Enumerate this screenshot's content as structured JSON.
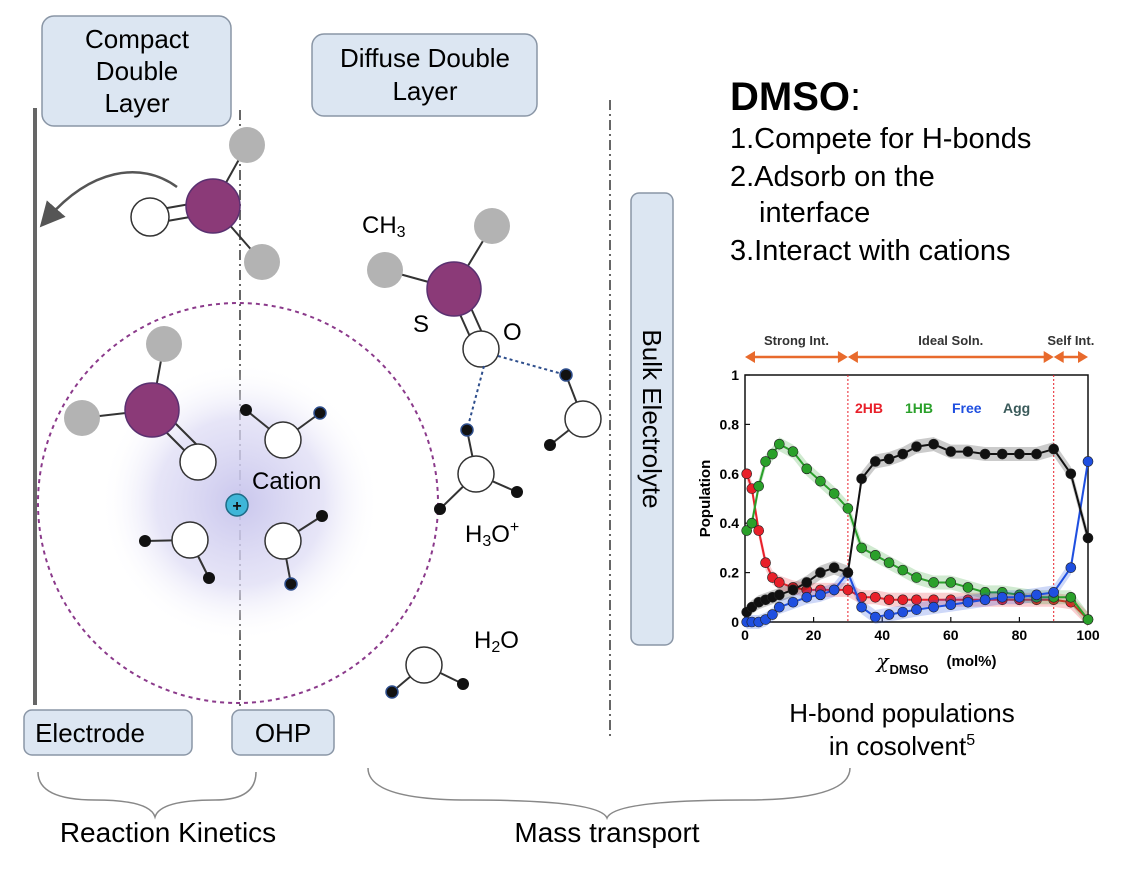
{
  "boxes": {
    "compact_line1": "Compact",
    "compact_line2": "Double",
    "compact_line3": "Layer",
    "diffuse_line1": "Diffuse Double",
    "diffuse_line2": "Layer",
    "bulk": "Bulk Electrolyte",
    "electrode": "Electrode",
    "ohp": "OHP"
  },
  "molecule_labels": {
    "ch3": "CH",
    "ch3_sub": "3",
    "s": "S",
    "o": "O",
    "cation": "Cation",
    "plus": "+",
    "h3o": "H",
    "h3o_sub": "3",
    "h3o_rest": "O",
    "h3o_sup": "+",
    "h2o": "H",
    "h2o_sub": "2",
    "h2o_rest": "O"
  },
  "bottom": {
    "reaction": "Reaction Kinetics",
    "mass": "Mass transport"
  },
  "dmso_panel": {
    "title": "DMSO",
    "colon": ":",
    "item1": "1.Compete for H-bonds",
    "item2a": "2.Adsorb on the",
    "item2b": "interface",
    "item3": "3.Interact with cations"
  },
  "caption": {
    "line1": "H-bond populations",
    "line2": "in cosolvent",
    "sup": "5"
  },
  "colors": {
    "box_fill": "#dce6f2",
    "box_stroke": "#8a96a6",
    "molecule_s": "#8b3a78",
    "cation": "#3fb6d8",
    "dashed_circle": "#8b3a8b",
    "hbond": "#2e4e8c",
    "arrow": "#e86a2c"
  },
  "chart_data": {
    "type": "line",
    "xlabel": "χ",
    "xlabel_sub": "DMSO",
    "xlabel_unit": "(mol%)",
    "ylabel": "Population",
    "xlim": [
      0,
      100
    ],
    "ylim": [
      0,
      1
    ],
    "xticks": [
      "0",
      "20",
      "40",
      "60",
      "80",
      "100"
    ],
    "yticks": [
      "0",
      "0.2",
      "0.4",
      "0.6",
      "0.8",
      "1"
    ],
    "regions": [
      "Strong Int.",
      "Ideal Soln.",
      "Self Int."
    ],
    "dividers": [
      30,
      90
    ],
    "x": [
      0.5,
      2,
      4,
      6,
      8,
      10,
      14,
      18,
      22,
      26,
      30,
      34,
      38,
      42,
      46,
      50,
      55,
      60,
      65,
      70,
      75,
      80,
      85,
      90,
      95,
      100
    ],
    "series": [
      {
        "name": "2HB",
        "color": "#e8202a",
        "values": [
          0.6,
          0.54,
          0.37,
          0.24,
          0.18,
          0.16,
          0.14,
          0.13,
          0.13,
          0.13,
          0.13,
          0.1,
          0.1,
          0.09,
          0.09,
          0.09,
          0.09,
          0.09,
          0.09,
          0.09,
          0.09,
          0.09,
          0.09,
          0.09,
          0.08,
          0.01
        ]
      },
      {
        "name": "1HB",
        "color": "#2aa02a",
        "values": [
          0.37,
          0.4,
          0.55,
          0.65,
          0.68,
          0.72,
          0.69,
          0.62,
          0.57,
          0.52,
          0.46,
          0.3,
          0.27,
          0.24,
          0.21,
          0.18,
          0.16,
          0.16,
          0.14,
          0.12,
          0.12,
          0.11,
          0.1,
          0.1,
          0.1,
          0.01
        ]
      },
      {
        "name": "Free",
        "color": "#1f4fe0",
        "values": [
          0.0,
          0.0,
          0.0,
          0.01,
          0.03,
          0.06,
          0.08,
          0.1,
          0.11,
          0.13,
          0.2,
          0.06,
          0.02,
          0.03,
          0.04,
          0.05,
          0.06,
          0.07,
          0.08,
          0.09,
          0.1,
          0.1,
          0.11,
          0.12,
          0.22,
          0.65
        ]
      },
      {
        "name": "Agg",
        "color": "#111111",
        "values": [
          0.04,
          0.06,
          0.08,
          0.09,
          0.1,
          0.11,
          0.13,
          0.16,
          0.2,
          0.22,
          0.2,
          0.58,
          0.65,
          0.66,
          0.68,
          0.71,
          0.72,
          0.69,
          0.69,
          0.68,
          0.68,
          0.68,
          0.68,
          0.7,
          0.6,
          0.34
        ]
      }
    ],
    "legend_placement": "top"
  }
}
